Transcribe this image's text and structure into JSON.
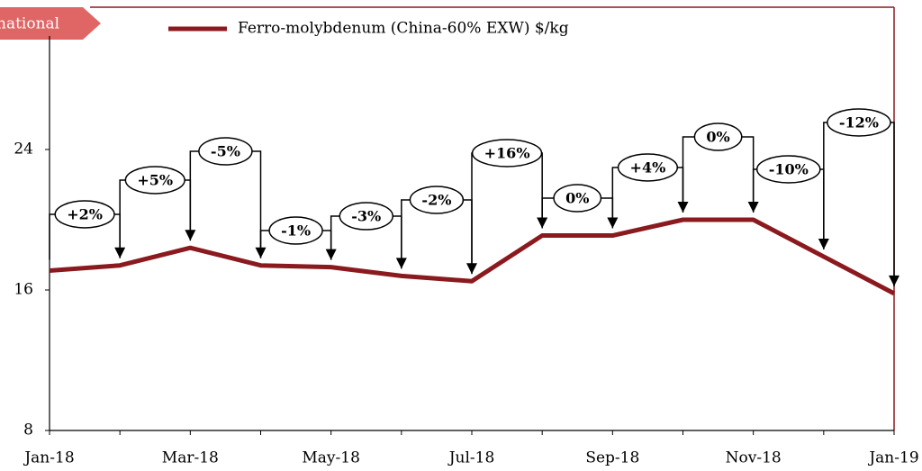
{
  "tag": "national",
  "chart_data": {
    "type": "line",
    "categories": [
      "Jan-18",
      null,
      "Mar-18",
      null,
      "May-18",
      null,
      "Jul-18",
      null,
      "Sep-18",
      null,
      "Nov-18",
      null,
      "Jan-19"
    ],
    "series": [
      {
        "name": "Ferro-molybdenum (China-60% EXW) $/kg",
        "color": "#8b1a1f",
        "values": [
          17.1,
          17.4,
          18.4,
          17.4,
          17.3,
          16.8,
          16.5,
          19.1,
          19.1,
          20,
          20,
          17.9,
          15.8
        ]
      }
    ],
    "annotations": [
      "+2%",
      "+5%",
      "-5%",
      "-1%",
      "-3%",
      "-2%",
      "+16%",
      "0%",
      "+4%",
      "0%",
      "-10%",
      "-12%"
    ],
    "ylim": [
      8,
      32
    ],
    "yticks": [
      8,
      16,
      24
    ]
  }
}
